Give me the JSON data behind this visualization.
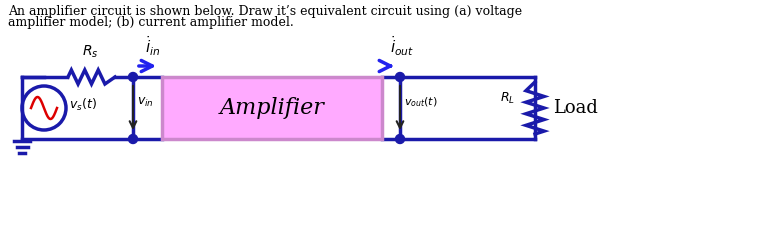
{
  "title_line1": "An amplifier circuit is shown below. Draw it’s equivalent circuit using (a) voltage",
  "title_line2": "amplifier model; (b) current amplifier model.",
  "bg_color": "#ffffff",
  "wire_color": "#1a1aaa",
  "wire_lw": 2.5,
  "amplifier_box_color": "#ffaaff",
  "amplifier_box_edge": "#cc88cc",
  "amplifier_label": "Amplifier",
  "load_label": "Load",
  "source_circle_color": "#1a1aaa",
  "sine_color": "#dd0000",
  "arrow_color": "#2222ee",
  "node_color": "#1a1aaa",
  "ground_color": "#1a1aaa",
  "text_color": "#000000",
  "Rs_fontsize": 9,
  "RL_fontsize": 9,
  "label_fontsize": 9,
  "amp_fontsize": 16,
  "load_fontsize": 13,
  "title_fontsize": 9
}
